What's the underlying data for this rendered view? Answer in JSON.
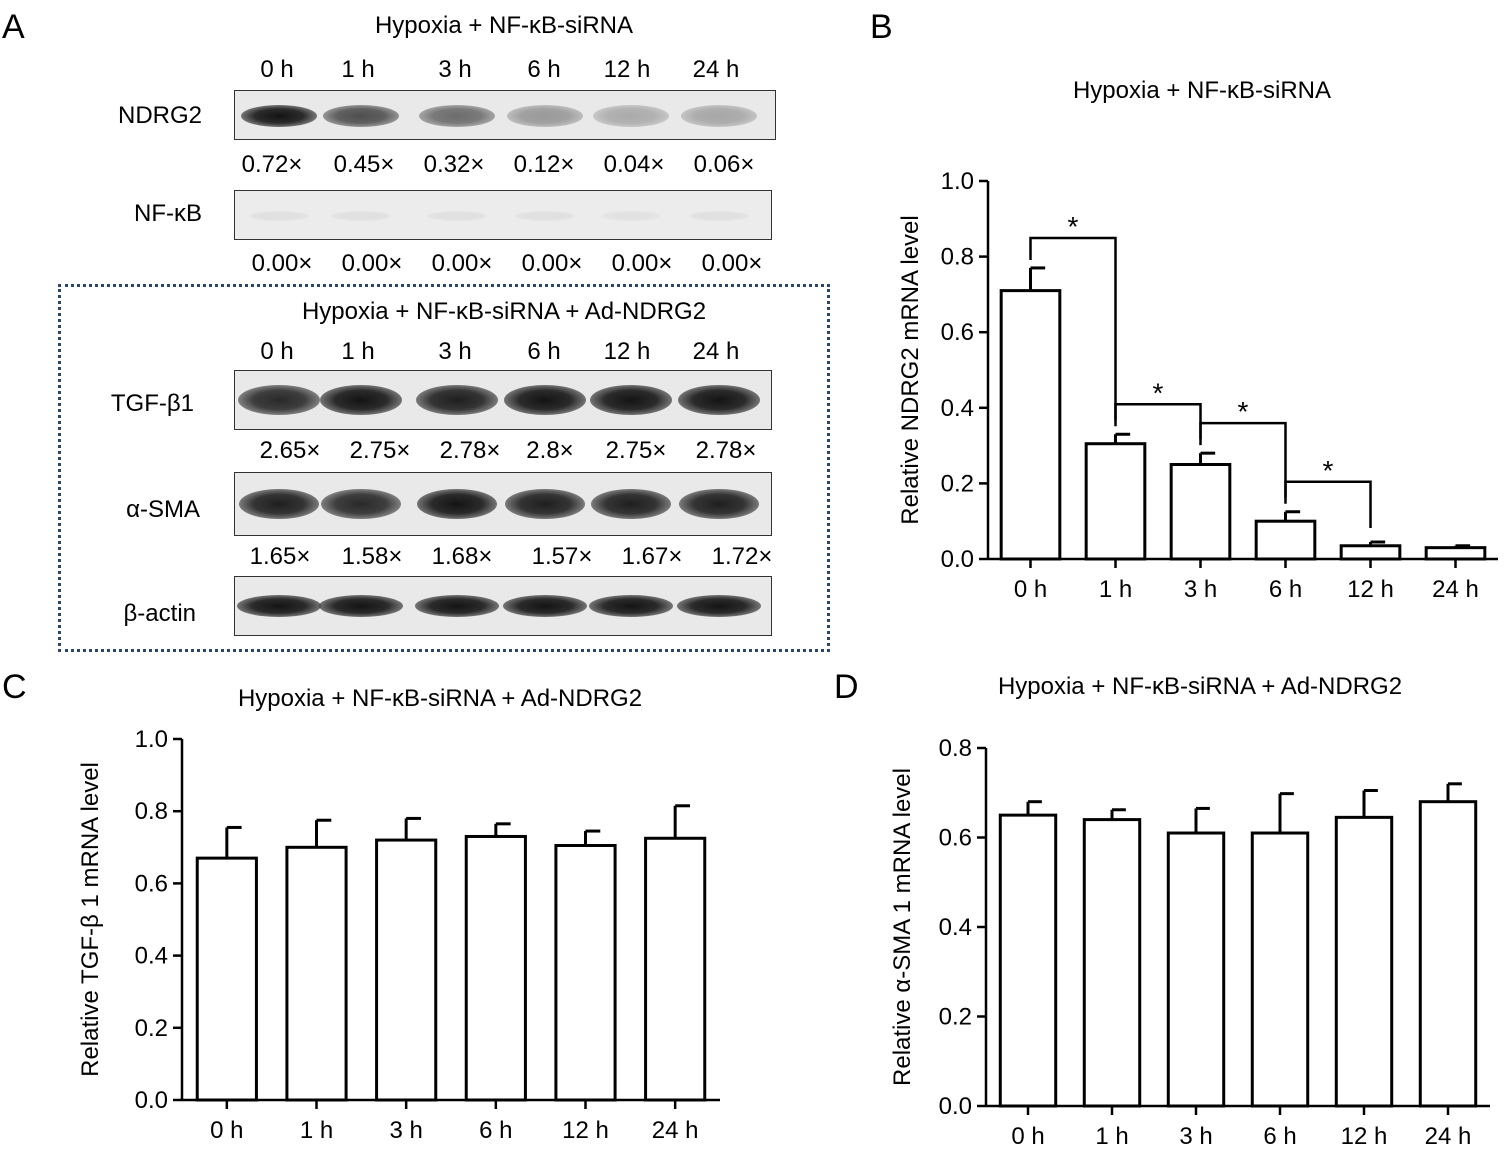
{
  "panel_letters": {
    "a": "A",
    "b": "B",
    "c": "C",
    "d": "D"
  },
  "blot_top": {
    "title": "Hypoxia + NF-κB-siRNA",
    "lanes": [
      "0 h",
      "1 h",
      "3 h",
      "6 h",
      "12 h",
      "24 h"
    ],
    "rows": [
      {
        "label": "NDRG2",
        "quant": [
          "0.72×",
          "0.45×",
          "0.32×",
          "0.12×",
          "0.04×",
          "0.06×"
        ],
        "intensity": [
          0.72,
          0.45,
          0.32,
          0.12,
          0.04,
          0.06
        ]
      },
      {
        "label": "NF-κB",
        "quant": [
          "0.00×",
          "0.00×",
          "0.00×",
          "0.00×",
          "0.00×",
          "0.00×"
        ],
        "intensity": [
          0,
          0,
          0,
          0,
          0,
          0
        ]
      }
    ]
  },
  "blot_bottom": {
    "title": "Hypoxia + NF-κB-siRNA + Ad-NDRG2",
    "lanes": [
      "0 h",
      "1 h",
      "3 h",
      "6 h",
      "12 h",
      "24 h"
    ],
    "rows": [
      {
        "label": "TGF-β1",
        "quant": [
          "2.65×",
          "2.75×",
          "2.78×",
          "2.8×",
          "2.75×",
          "2.78×"
        ]
      },
      {
        "label": "α-SMA",
        "quant": [
          "1.65×",
          "1.58×",
          "1.68×",
          "1.57×",
          "1.67×",
          "1.72×"
        ]
      },
      {
        "label": "β-actin",
        "quant": []
      }
    ]
  },
  "chart_data": [
    {
      "panel": "B",
      "type": "bar",
      "title": "Hypoxia + NF-κB-siRNA",
      "ylabel": "Relative NDRG2 mRNA level",
      "xlabel": "",
      "categories": [
        "0 h",
        "1 h",
        "3 h",
        "6 h",
        "12 h",
        "24 h"
      ],
      "values": [
        0.71,
        0.305,
        0.25,
        0.1,
        0.035,
        0.03
      ],
      "errors": [
        0.06,
        0.025,
        0.03,
        0.025,
        0.01,
        0.005
      ],
      "ylim": [
        0,
        1.0
      ],
      "yticks": [
        "0.0",
        "0.2",
        "0.4",
        "0.6",
        "0.8",
        "1.0"
      ],
      "significance": [
        {
          "from": "0 h",
          "to": "1 h",
          "label": "*"
        },
        {
          "from": "1 h",
          "to": "3 h",
          "label": "*"
        },
        {
          "from": "3 h",
          "to": "6 h",
          "label": "*"
        },
        {
          "from": "6 h",
          "to": "12 h",
          "label": "*"
        }
      ]
    },
    {
      "panel": "C",
      "type": "bar",
      "title": "Hypoxia + NF-κB-siRNA + Ad-NDRG2",
      "ylabel": "Relative TGF-β 1 mRNA level",
      "xlabel": "",
      "categories": [
        "0 h",
        "1 h",
        "3 h",
        "6 h",
        "12 h",
        "24 h"
      ],
      "values": [
        0.67,
        0.7,
        0.72,
        0.73,
        0.705,
        0.725
      ],
      "errors": [
        0.085,
        0.075,
        0.06,
        0.035,
        0.04,
        0.09
      ],
      "ylim": [
        0,
        1.0
      ],
      "yticks": [
        "0.0",
        "0.2",
        "0.4",
        "0.6",
        "0.8",
        "1.0"
      ]
    },
    {
      "panel": "D",
      "type": "bar",
      "title": "Hypoxia + NF-κB-siRNA + Ad-NDRG2",
      "ylabel": "Relative α-SMA 1 mRNA level",
      "xlabel": "",
      "categories": [
        "0 h",
        "1 h",
        "3 h",
        "6 h",
        "12 h",
        "24 h"
      ],
      "values": [
        0.65,
        0.64,
        0.61,
        0.61,
        0.645,
        0.68
      ],
      "errors": [
        0.03,
        0.022,
        0.055,
        0.088,
        0.06,
        0.04
      ],
      "ylim": [
        0,
        0.8
      ],
      "yticks": [
        "0.0",
        "0.2",
        "0.4",
        "0.6",
        "0.8"
      ]
    }
  ]
}
